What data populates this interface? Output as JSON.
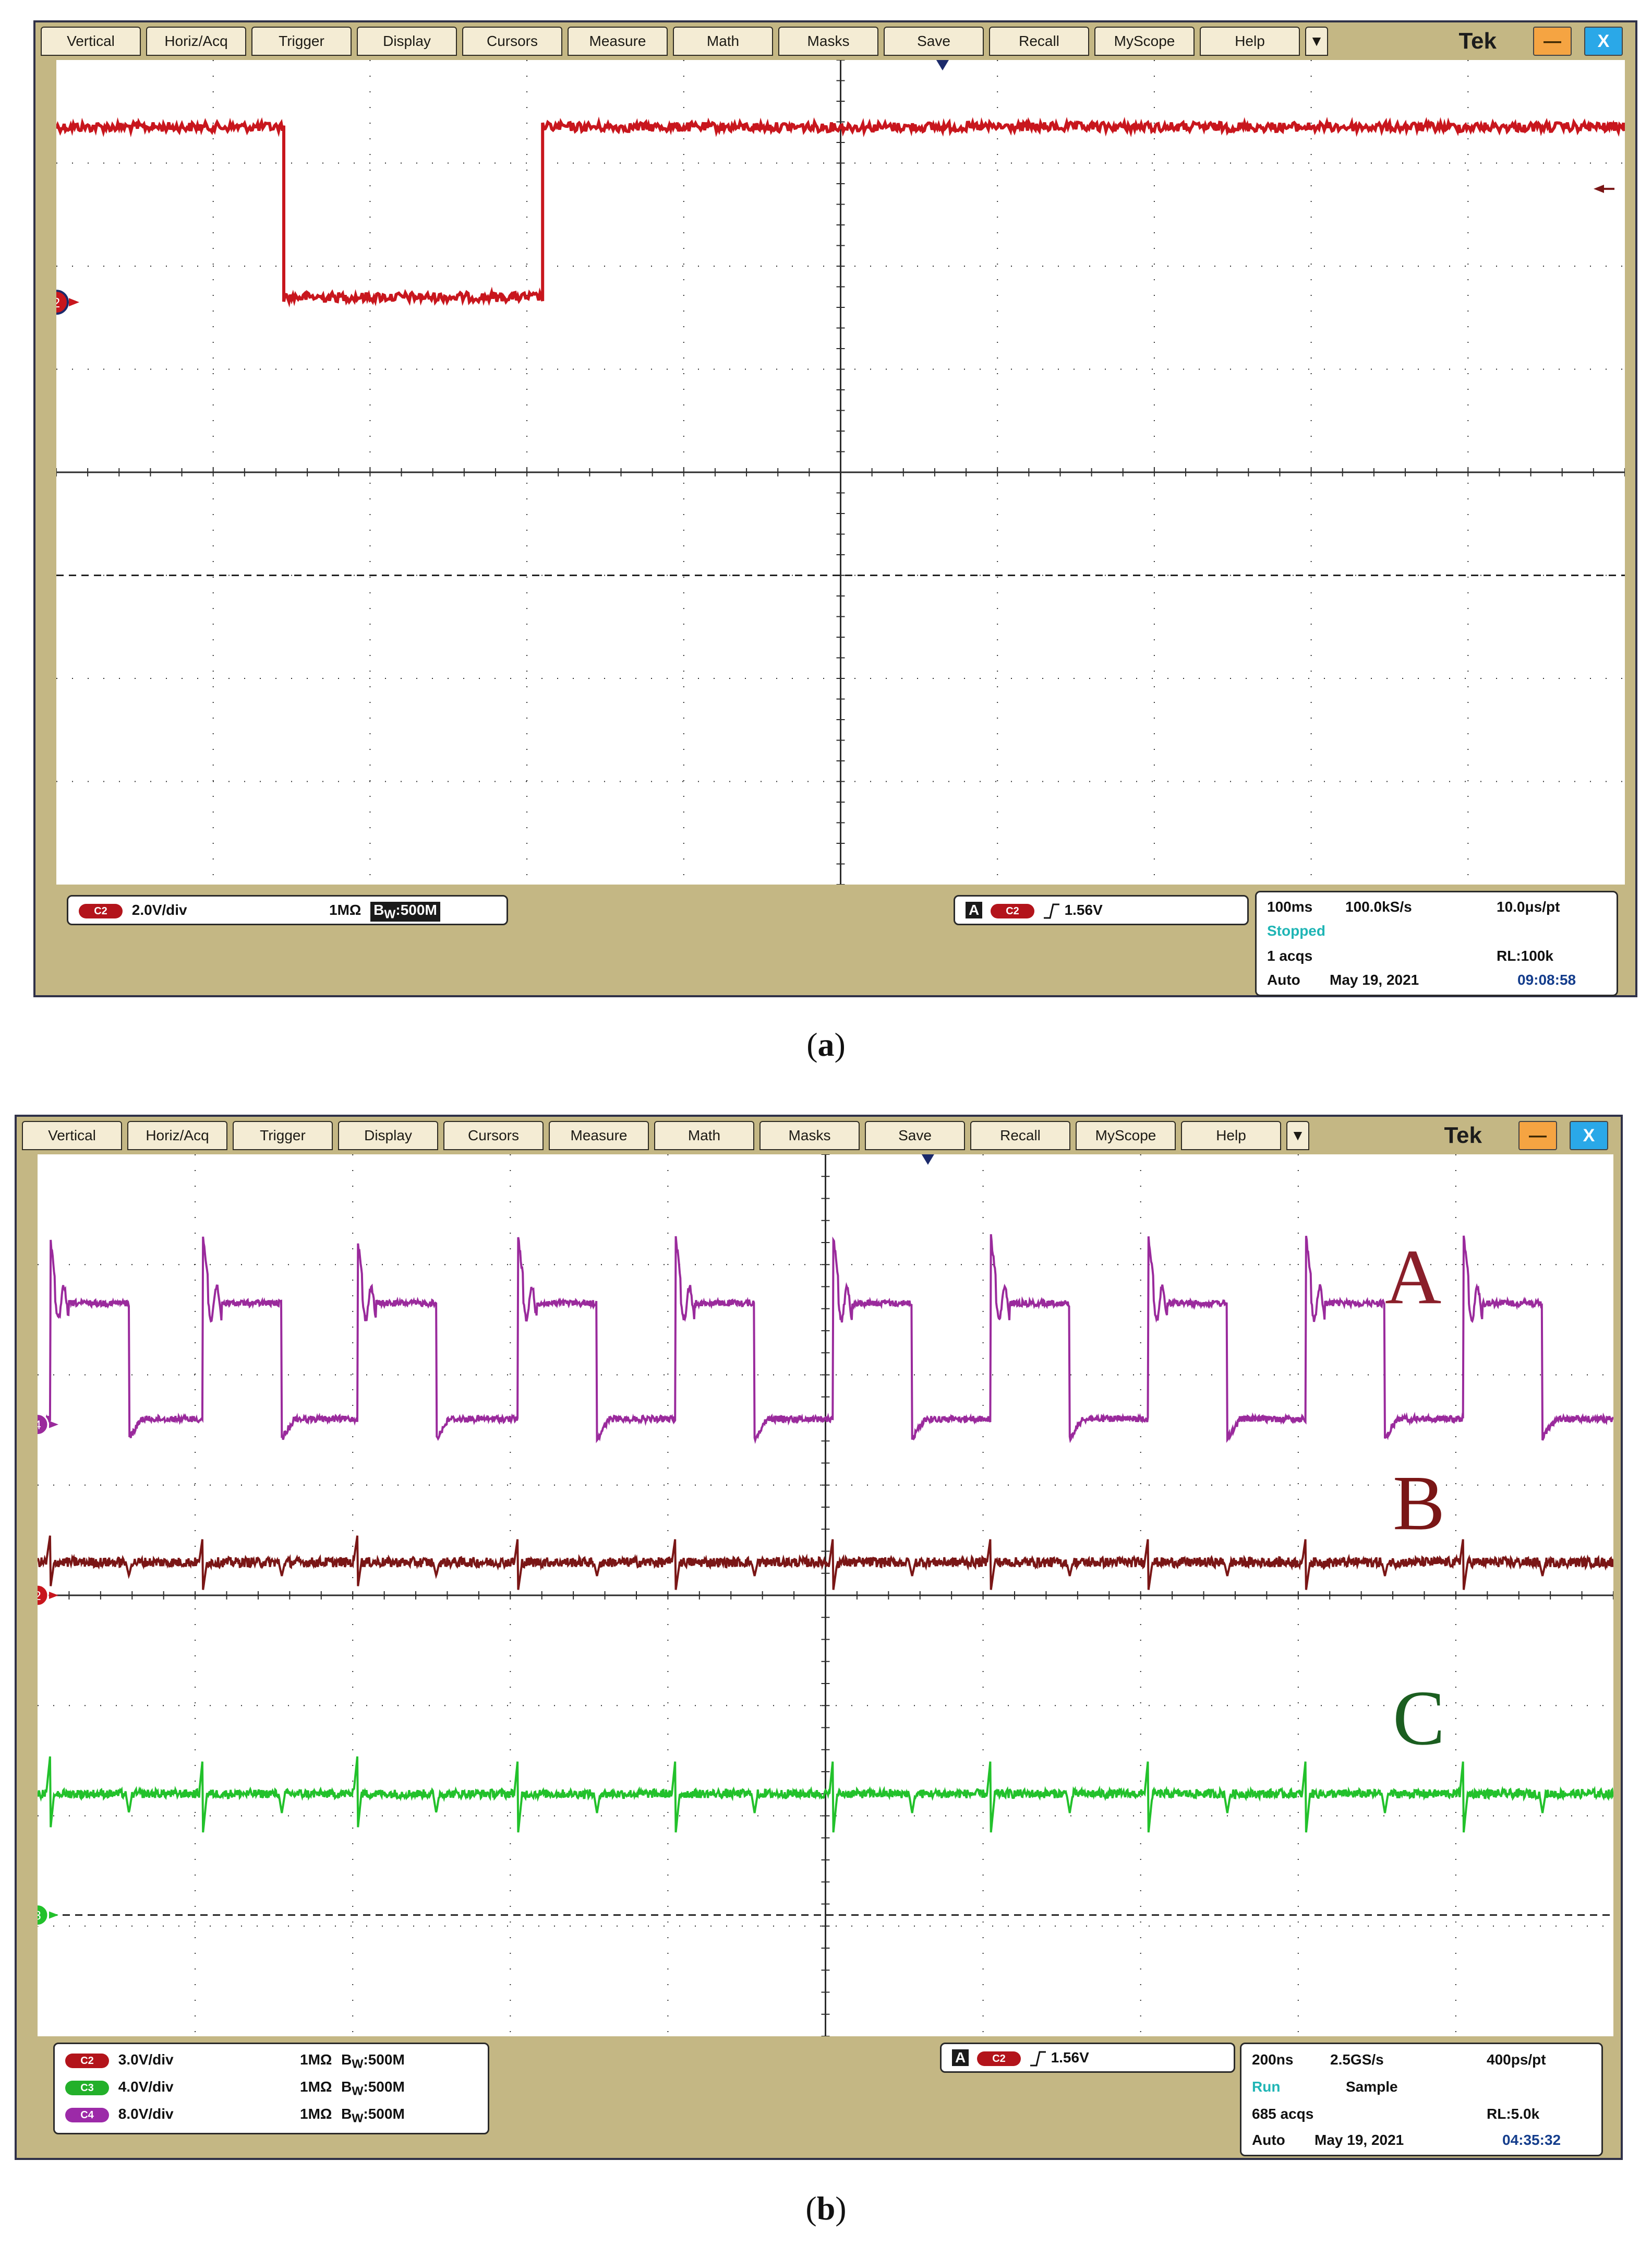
{
  "menu": [
    "Vertical",
    "Horiz/Acq",
    "Trigger",
    "Display",
    "Cursors",
    "Measure",
    "Math",
    "Masks",
    "Save",
    "Recall",
    "MyScope",
    "Help"
  ],
  "menu_arrow": "▼",
  "brand": "Tek",
  "window_controls": {
    "minimize": "—",
    "close": "X"
  },
  "icons": [
    "minimize-icon",
    "close-icon",
    "dropdown-arrow-icon",
    "trigger-position-marker-icon",
    "channel-ground-marker-icon",
    "trigger-level-arrow-icon",
    "trigger-slope-icon"
  ],
  "colors": {
    "bezel": "#c4b784",
    "grid": "#2b2b2b",
    "ch2_a": "#c8161d",
    "ch2_b": "#7a1616",
    "ch3": "#22c12b",
    "ch4": "#9a2a9c"
  },
  "scope_a": {
    "caption": "a",
    "channels": [
      {
        "badge": "C2",
        "scale": "2.0V/div",
        "impedance": "1MΩ",
        "bw_prefix": "B",
        "bw_sub": "W",
        "bandwidth": ":500M"
      }
    ],
    "trigger": {
      "mode": "A",
      "source": "C2",
      "level": "1.56V"
    },
    "timebase": {
      "tdiv": "100ms",
      "sample_rate": "100.0kS/s",
      "per_pt": "10.0μs/pt",
      "state": "Stopped",
      "acqs": "1 acqs",
      "record_length": "RL:100k",
      "trigger_mode": "Auto",
      "date": "May 19, 2021",
      "time": "09:08:58"
    },
    "ground_marker": "2"
  },
  "scope_b": {
    "caption": "b",
    "channels": [
      {
        "badge": "C2",
        "scale": "3.0V/div",
        "impedance": "1MΩ",
        "bw_prefix": "B",
        "bw_sub": "W",
        "bandwidth": ":500M"
      },
      {
        "badge": "C3",
        "scale": "4.0V/div",
        "impedance": "1MΩ",
        "bw_prefix": "B",
        "bw_sub": "W",
        "bandwidth": ":500M"
      },
      {
        "badge": "C4",
        "scale": "8.0V/div",
        "impedance": "1MΩ",
        "bw_prefix": "B",
        "bw_sub": "W",
        "bandwidth": ":500M"
      }
    ],
    "trigger": {
      "mode": "A",
      "source": "C2",
      "level": "1.56V"
    },
    "timebase": {
      "tdiv": "200ns",
      "sample_rate": "2.5GS/s",
      "per_pt": "400ps/pt",
      "state": "Run",
      "acq_mode": "Sample",
      "acqs": "685 acqs",
      "record_length": "RL:5.0k",
      "trigger_mode": "Auto",
      "date": "May 19, 2021",
      "time": "04:35:32"
    },
    "trace_labels": {
      "ch4": "A",
      "ch2": "B",
      "ch3": "C"
    },
    "ground_markers": {
      "ch4": "4",
      "ch2": "2",
      "ch3": "3"
    }
  },
  "chart_data": [
    {
      "type": "line",
      "title": "",
      "xlim": [
        0,
        10
      ],
      "ylim": [
        -4,
        4
      ],
      "grid": true,
      "series": [
        {
          "x": [
            0,
            1.45,
            1.45,
            3.1,
            3.1,
            10
          ],
          "y": [
            3.35,
            3.35,
            1.7,
            1.7,
            3.35,
            3.35
          ]
        }
      ]
    },
    {
      "type": "line",
      "title": "",
      "xlim": [
        0,
        10
      ],
      "ylim": [
        -4,
        4
      ],
      "grid": true,
      "period_div": 1.0,
      "pulse_starts_div": [
        0.08,
        1.05,
        2.03,
        3.05,
        4.05,
        5.05,
        6.05,
        7.05,
        8.05,
        9.05
      ],
      "series": [
        {
          "name": "A",
          "high": 2.65,
          "low": 1.6,
          "spike": 3.25,
          "duty": 0.5,
          "color": "#9a2a9c"
        },
        {
          "name": "B",
          "level": 0.3,
          "spike": 0.55,
          "color": "#7a1616"
        },
        {
          "name": "C",
          "level": -1.8,
          "spike": -1.45,
          "color": "#22c12b"
        }
      ]
    }
  ]
}
